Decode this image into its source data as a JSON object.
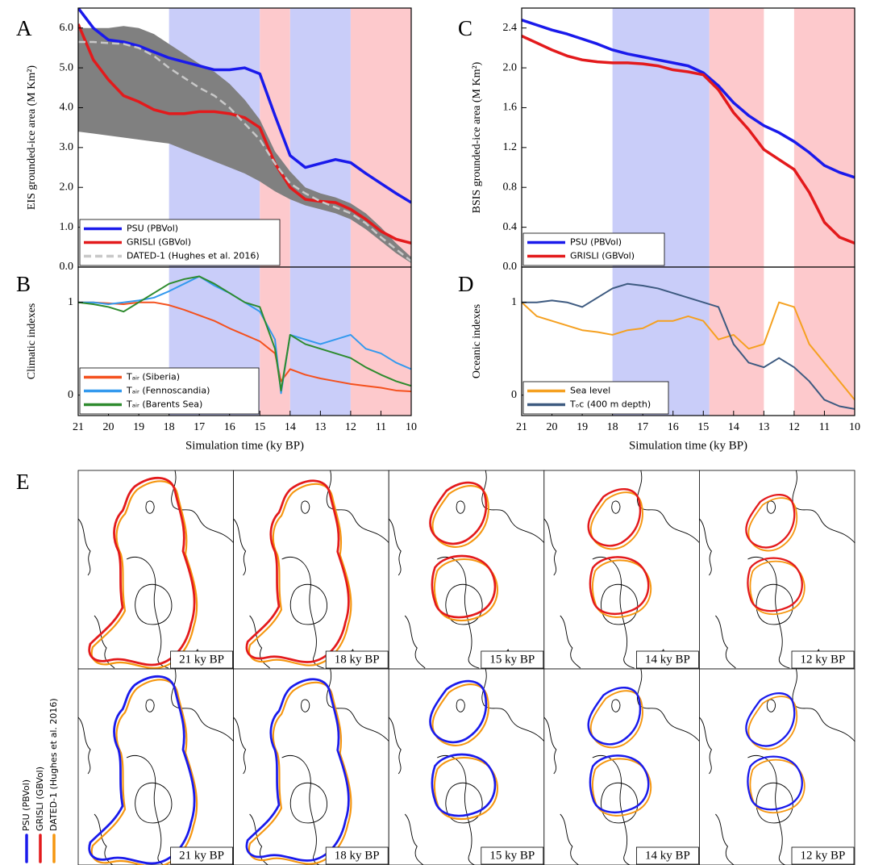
{
  "chart_data": [
    {
      "type": "line",
      "label": "A",
      "ylabel": "EIS grounded-ice area (M Km²)",
      "xlim": [
        21,
        10
      ],
      "ylim": [
        0,
        6.5
      ],
      "yticks": [
        {
          "value": 0,
          "label": "0.0"
        },
        {
          "value": 1,
          "label": "1.0"
        },
        {
          "value": 2,
          "label": "2.0"
        },
        {
          "value": 3,
          "label": "3.0"
        },
        {
          "value": 4,
          "label": "4.0"
        },
        {
          "value": 5,
          "label": "5.0"
        },
        {
          "value": 6,
          "label": "6.0"
        }
      ],
      "x": [
        21,
        20.5,
        20,
        19.5,
        19,
        18.5,
        18,
        17.5,
        17,
        16.5,
        16,
        15.5,
        15,
        14.5,
        14,
        13.5,
        13,
        12.5,
        12,
        11.5,
        11,
        10.5,
        10
      ],
      "shading": [
        {
          "range": [
            18,
            15
          ],
          "color": "#c9cdf9"
        },
        {
          "range": [
            15,
            14
          ],
          "color": "#fdc9cc"
        },
        {
          "range": [
            14,
            12
          ],
          "color": "#c9cdf9"
        },
        {
          "range": [
            12,
            10
          ],
          "color": "#fdc9cc"
        }
      ],
      "band": {
        "color": "#808080",
        "upper": [
          6.0,
          6.0,
          6.0,
          6.05,
          6.0,
          5.85,
          5.6,
          5.35,
          5.1,
          4.9,
          4.6,
          4.2,
          3.7,
          2.9,
          2.4,
          2.0,
          1.85,
          1.75,
          1.6,
          1.35,
          1.0,
          0.6,
          0.25
        ],
        "lower": [
          3.4,
          3.35,
          3.3,
          3.25,
          3.2,
          3.15,
          3.1,
          2.95,
          2.8,
          2.65,
          2.5,
          2.35,
          2.15,
          1.9,
          1.7,
          1.55,
          1.45,
          1.35,
          1.2,
          0.95,
          0.65,
          0.35,
          0.1
        ]
      },
      "legend": "lower left",
      "series": [
        {
          "name": "PSU (PBVol)",
          "color": "#1a1aeb",
          "values": [
            6.5,
            6.0,
            5.7,
            5.65,
            5.55,
            5.4,
            5.25,
            5.15,
            5.05,
            4.95,
            4.95,
            5.0,
            4.85,
            3.8,
            2.8,
            2.5,
            2.6,
            2.7,
            2.62,
            2.35,
            2.1,
            1.85,
            1.62
          ]
        },
        {
          "name": "GRISLI (GBVol)",
          "color": "#e31a1c",
          "values": [
            6.1,
            5.2,
            4.7,
            4.3,
            4.15,
            3.95,
            3.85,
            3.85,
            3.9,
            3.9,
            3.85,
            3.75,
            3.5,
            2.6,
            2.0,
            1.7,
            1.65,
            1.62,
            1.45,
            1.2,
            0.9,
            0.7,
            0.6
          ]
        },
        {
          "name": "DATED-1 (Hughes et al. 2016)",
          "color": "#c8c8c8",
          "dashed": true,
          "values": [
            5.65,
            5.65,
            5.62,
            5.6,
            5.5,
            5.3,
            5.0,
            4.75,
            4.5,
            4.3,
            4.0,
            3.6,
            3.2,
            2.6,
            2.1,
            1.85,
            1.65,
            1.5,
            1.35,
            1.1,
            0.75,
            0.45,
            0.15
          ]
        }
      ]
    },
    {
      "type": "line",
      "label": "B",
      "ylabel": "Climatic indexes",
      "xlabel": "Simulation time (ky BP)",
      "xlim": [
        21,
        10
      ],
      "xticks": [
        21,
        20,
        19,
        18,
        17,
        16,
        15,
        14,
        13,
        12,
        11,
        10
      ],
      "ylim": [
        -0.22,
        1.38
      ],
      "yticks": [
        0,
        1
      ],
      "x": [
        21,
        20.5,
        20,
        19.5,
        19,
        18.5,
        18,
        17.5,
        17,
        16.5,
        16,
        15.5,
        15,
        14.5,
        14.3,
        14,
        13.5,
        13,
        12.5,
        12,
        11.5,
        11,
        10.5,
        10
      ],
      "shading": [
        {
          "range": [
            18,
            15
          ],
          "color": "#c9cdf9"
        },
        {
          "range": [
            15,
            14
          ],
          "color": "#fdc9cc"
        },
        {
          "range": [
            14,
            12
          ],
          "color": "#c9cdf9"
        },
        {
          "range": [
            12,
            10
          ],
          "color": "#fdc9cc"
        }
      ],
      "legend": "lower left",
      "series": [
        {
          "name": "Tₐᵢᵣ (Siberia)",
          "color": "#f4511e",
          "values": [
            1.0,
            1.0,
            0.99,
            0.98,
            1.0,
            1.0,
            0.97,
            0.92,
            0.86,
            0.8,
            0.72,
            0.65,
            0.58,
            0.45,
            0.15,
            0.28,
            0.22,
            0.18,
            0.15,
            0.12,
            0.1,
            0.08,
            0.05,
            0.04
          ]
        },
        {
          "name": "Tₐᵢᵣ (Fennoscandia)",
          "color": "#3399ee",
          "values": [
            1.0,
            1.0,
            0.98,
            1.0,
            1.02,
            1.05,
            1.12,
            1.2,
            1.28,
            1.18,
            1.1,
            1.0,
            0.9,
            0.6,
            0.02,
            0.65,
            0.6,
            0.55,
            0.6,
            0.65,
            0.5,
            0.45,
            0.35,
            0.28
          ]
        },
        {
          "name": "Tₐᵢᵣ (Barents Sea)",
          "color": "#2e8b2e",
          "values": [
            1.0,
            0.98,
            0.95,
            0.9,
            1.0,
            1.1,
            1.2,
            1.25,
            1.28,
            1.2,
            1.1,
            1.0,
            0.95,
            0.5,
            0.05,
            0.65,
            0.55,
            0.5,
            0.45,
            0.4,
            0.3,
            0.22,
            0.15,
            0.1
          ]
        }
      ]
    },
    {
      "type": "line",
      "label": "C",
      "ylabel": "BSIS grounded-ice area (M Km²)",
      "xlim": [
        21,
        10
      ],
      "ylim": [
        0,
        2.6
      ],
      "yticks": [
        {
          "value": 0,
          "label": "0.0"
        },
        0.4,
        0.8,
        1.2,
        1.6,
        {
          "value": 2,
          "label": "2.0"
        },
        2.4
      ],
      "x": [
        21,
        20.5,
        20,
        19.5,
        19,
        18.5,
        18,
        17.5,
        17,
        16.5,
        16,
        15.5,
        15,
        14.5,
        14,
        13.5,
        13,
        12.5,
        12,
        11.5,
        11,
        10.5,
        10
      ],
      "shading": [
        {
          "range": [
            18,
            14.8
          ],
          "color": "#c9cdf9"
        },
        {
          "range": [
            14.8,
            13
          ],
          "color": "#fdc9cc"
        },
        {
          "range": [
            12,
            10
          ],
          "color": "#fdc9cc"
        }
      ],
      "legend": "lower left",
      "series": [
        {
          "name": "PSU (PBVol)",
          "color": "#1a1aeb",
          "values": [
            2.48,
            2.43,
            2.38,
            2.34,
            2.29,
            2.24,
            2.18,
            2.14,
            2.11,
            2.08,
            2.05,
            2.02,
            1.95,
            1.82,
            1.65,
            1.52,
            1.42,
            1.35,
            1.26,
            1.15,
            1.02,
            0.95,
            0.9
          ]
        },
        {
          "name": "GRISLI (GBVol)",
          "color": "#e31a1c",
          "values": [
            2.32,
            2.25,
            2.18,
            2.12,
            2.08,
            2.06,
            2.05,
            2.05,
            2.04,
            2.02,
            1.98,
            1.96,
            1.93,
            1.78,
            1.55,
            1.38,
            1.18,
            1.08,
            0.98,
            0.75,
            0.45,
            0.3,
            0.24
          ]
        }
      ]
    },
    {
      "type": "line",
      "label": "D",
      "ylabel": "Oceanic indexes",
      "xlabel": "Simulation time (ky BP)",
      "xlim": [
        21,
        10
      ],
      "xticks": [
        21,
        20,
        19,
        18,
        17,
        16,
        15,
        14,
        13,
        12,
        11,
        10
      ],
      "ylim": [
        -0.22,
        1.38
      ],
      "yticks": [
        0,
        1
      ],
      "x": [
        21,
        20.5,
        20,
        19.5,
        19,
        18.5,
        18,
        17.5,
        17,
        16.5,
        16,
        15.5,
        15,
        14.5,
        14,
        13.5,
        13,
        12.5,
        12,
        11.5,
        11,
        10.5,
        10
      ],
      "shading": [
        {
          "range": [
            18,
            14.8
          ],
          "color": "#c9cdf9"
        },
        {
          "range": [
            14.8,
            13
          ],
          "color": "#fdc9cc"
        },
        {
          "range": [
            12,
            10
          ],
          "color": "#fdc9cc"
        }
      ],
      "legend": "lower left",
      "series": [
        {
          "name": "Sea level",
          "color": "#f5a020",
          "values": [
            1.0,
            0.85,
            0.8,
            0.75,
            0.7,
            0.68,
            0.65,
            0.7,
            0.72,
            0.8,
            0.8,
            0.85,
            0.8,
            0.6,
            0.65,
            0.5,
            0.55,
            1.0,
            0.95,
            0.55,
            0.35,
            0.15,
            -0.05
          ]
        },
        {
          "name": "Tₒc (400 m depth)",
          "color": "#3d5a80",
          "values": [
            1.0,
            1.0,
            1.02,
            1.0,
            0.95,
            1.05,
            1.15,
            1.2,
            1.18,
            1.15,
            1.1,
            1.05,
            1.0,
            0.95,
            0.55,
            0.35,
            0.3,
            0.4,
            0.3,
            0.15,
            -0.05,
            -0.12,
            -0.15
          ]
        }
      ]
    }
  ],
  "panel_e": {
    "label": "E",
    "legend": [
      {
        "name": "PSU (PBVol)",
        "color": "#1a1aeb"
      },
      {
        "name": "GRISLI (GBVol)",
        "color": "#e31a1c"
      },
      {
        "name": "DATED-1 (Hughes et al. 2016)",
        "color": "#f5960f"
      }
    ],
    "rows": [
      [
        "21 ky BP",
        "18 ky BP",
        "15 ky BP",
        "14 ky BP",
        "12 ky BP"
      ],
      [
        "21 ky BP",
        "18 ky BP",
        "15 ky BP",
        "14 ky BP",
        "12 ky BP"
      ]
    ]
  }
}
